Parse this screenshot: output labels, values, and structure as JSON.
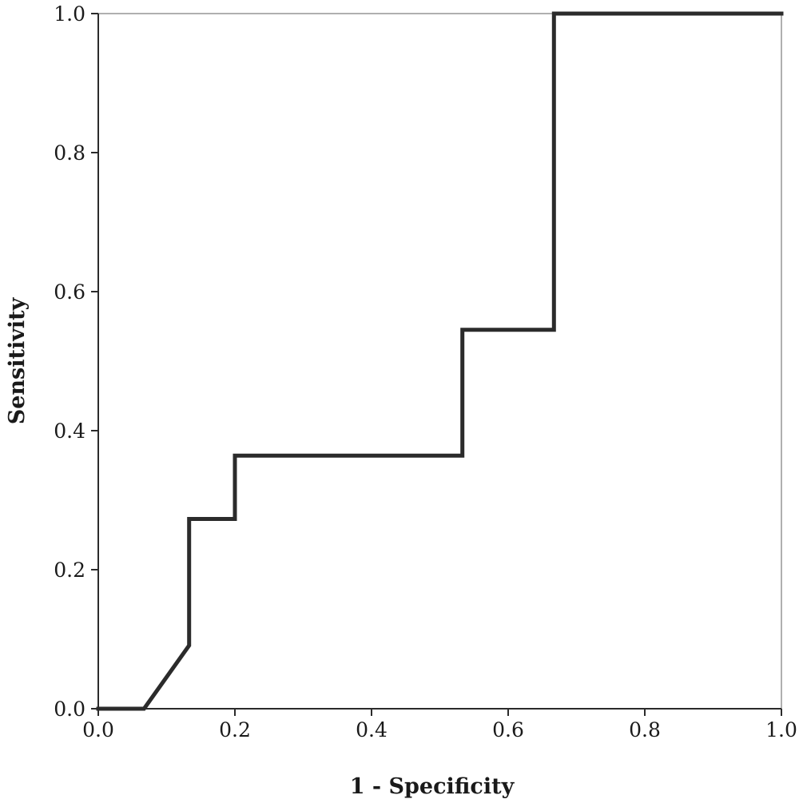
{
  "chart_data": {
    "type": "line",
    "title": "",
    "xlabel": "1 - Specificity",
    "ylabel": "Sensitivity",
    "xlim": [
      0,
      1
    ],
    "ylim": [
      0,
      1
    ],
    "x_ticks": [
      "0.0",
      "0.2",
      "0.4",
      "0.6",
      "0.8",
      "1.0"
    ],
    "y_ticks": [
      "0.0",
      "0.2",
      "0.4",
      "0.6",
      "0.8",
      "1.0"
    ],
    "grid": false,
    "legend": "none",
    "series": [
      {
        "x": [
          0.0,
          0.067,
          0.133,
          0.133,
          0.2,
          0.2,
          0.533,
          0.533,
          0.667,
          0.667,
          1.0
        ],
        "y": [
          0.0,
          0.0,
          0.091,
          0.273,
          0.273,
          0.364,
          0.364,
          0.545,
          0.545,
          1.0,
          1.0
        ]
      }
    ],
    "colors": {
      "curve": "#2b2b2b",
      "frame": "#2b2b2b",
      "frame_light": "#b0b0b0",
      "text": "#1a1a1a"
    }
  }
}
